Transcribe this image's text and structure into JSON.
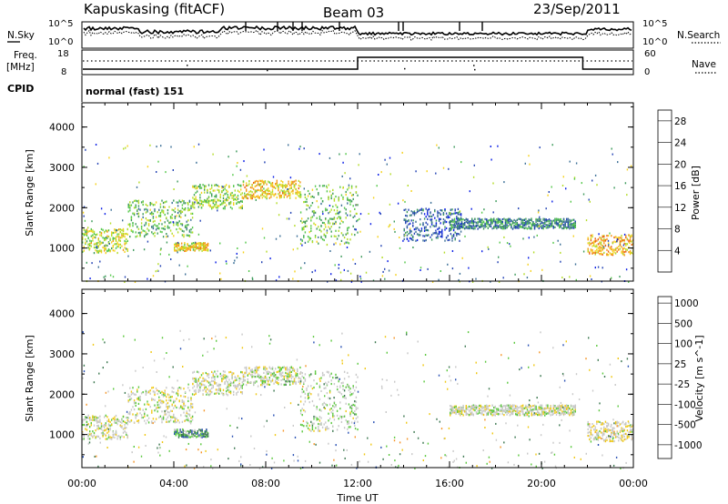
{
  "header": {
    "station": "Kapuskasing (fitACF)",
    "beam": "Beam 03",
    "date": "23/Sep/2011"
  },
  "noise_panel": {
    "left_label": "N.Sky",
    "left_ticks": [
      "10^5",
      "10^0"
    ],
    "right_label": "N.Search",
    "right_ticks": [
      "10^5",
      "10^0"
    ]
  },
  "freq_panel": {
    "left_label_line1": "Freq.",
    "left_label_line2": "[MHz]",
    "left_ticks": [
      "18",
      "8"
    ],
    "right_label": "Nave",
    "right_ticks": [
      "60",
      "0"
    ]
  },
  "cpid": {
    "label": "CPID",
    "value": "normal (fast) 151"
  },
  "colors": {
    "power_scale": [
      "#0a1ee6",
      "#2343b4",
      "#3a6e96",
      "#3c9a5a",
      "#55c84b",
      "#b4dc28",
      "#f5d21e",
      "#f59614",
      "#eb6414",
      "#dc1e0a"
    ],
    "velocity_scale": [
      "#1e3ce6",
      "#2850b4",
      "#3c7850",
      "#5ac83c",
      "#c8c8c8",
      "#c8c8c8",
      "#f0c814",
      "#f59628",
      "#f06414",
      "#e61e0a"
    ]
  },
  "chart_data": [
    {
      "type": "heatmap",
      "title": "",
      "ylabel": "Slant Range [km]",
      "xlabel": "",
      "x_ticks": [
        "00:00",
        "04:00",
        "08:00",
        "12:00",
        "16:00",
        "20:00",
        "00:00"
      ],
      "y_ticks": [
        "1000",
        "2000",
        "3000",
        "4000"
      ],
      "xlim_hours": [
        0,
        24
      ],
      "ylim_km": [
        180,
        4600
      ],
      "colorbar": {
        "label": "Power [dB]",
        "ticks": [
          "4",
          "8",
          "12",
          "16",
          "20",
          "24",
          "28"
        ],
        "range": [
          0,
          30
        ]
      },
      "bands": [
        {
          "t0": 0.0,
          "t1": 2.0,
          "r0": 900,
          "r1": 1500,
          "level": 0.55
        },
        {
          "t0": 2.0,
          "t1": 4.8,
          "r0": 1300,
          "r1": 2200,
          "level": 0.45
        },
        {
          "t0": 4.8,
          "t1": 7.0,
          "r0": 2000,
          "r1": 2600,
          "level": 0.5
        },
        {
          "t0": 7.0,
          "t1": 9.5,
          "r0": 2250,
          "r1": 2700,
          "level": 0.65
        },
        {
          "t0": 9.5,
          "t1": 12.0,
          "r0": 1100,
          "r1": 2600,
          "level": 0.45
        },
        {
          "t0": 4.0,
          "t1": 5.5,
          "r0": 950,
          "r1": 1150,
          "level": 0.65
        },
        {
          "t0": 16.0,
          "t1": 21.5,
          "r0": 1500,
          "r1": 1750,
          "level": 0.3
        },
        {
          "t0": 14.0,
          "t1": 16.5,
          "r0": 1200,
          "r1": 2000,
          "level": 0.2
        },
        {
          "t0": 22.0,
          "t1": 24.0,
          "r0": 850,
          "r1": 1350,
          "level": 0.7
        }
      ]
    },
    {
      "type": "heatmap",
      "title": "",
      "ylabel": "Slant Range [km]",
      "xlabel": "Time UT",
      "x_ticks": [
        "00:00",
        "04:00",
        "08:00",
        "12:00",
        "16:00",
        "20:00",
        "00:00"
      ],
      "y_ticks": [
        "1000",
        "2000",
        "3000",
        "4000"
      ],
      "xlim_hours": [
        0,
        24
      ],
      "ylim_km": [
        180,
        4600
      ],
      "colorbar": {
        "label": "Velocity [m s^-1]",
        "ticks": [
          "1000",
          "500",
          "100",
          "25",
          "-25",
          "-100",
          "-500",
          "-1000"
        ],
        "range": [
          -1000,
          1000
        ]
      },
      "bands": [
        {
          "t0": 0.0,
          "t1": 2.0,
          "r0": 900,
          "r1": 1500,
          "level": 0.5
        },
        {
          "t0": 2.0,
          "t1": 4.8,
          "r0": 1300,
          "r1": 2200,
          "level": 0.5
        },
        {
          "t0": 4.8,
          "t1": 7.0,
          "r0": 2000,
          "r1": 2600,
          "level": 0.5
        },
        {
          "t0": 7.0,
          "t1": 9.5,
          "r0": 2250,
          "r1": 2700,
          "level": 0.5
        },
        {
          "t0": 9.5,
          "t1": 12.0,
          "r0": 1100,
          "r1": 2600,
          "level": 0.45
        },
        {
          "t0": 4.0,
          "t1": 5.5,
          "r0": 950,
          "r1": 1150,
          "level": 0.3
        },
        {
          "t0": 16.0,
          "t1": 21.5,
          "r0": 1500,
          "r1": 1750,
          "level": 0.5
        },
        {
          "t0": 22.0,
          "t1": 24.0,
          "r0": 850,
          "r1": 1350,
          "level": 0.55
        }
      ]
    }
  ]
}
